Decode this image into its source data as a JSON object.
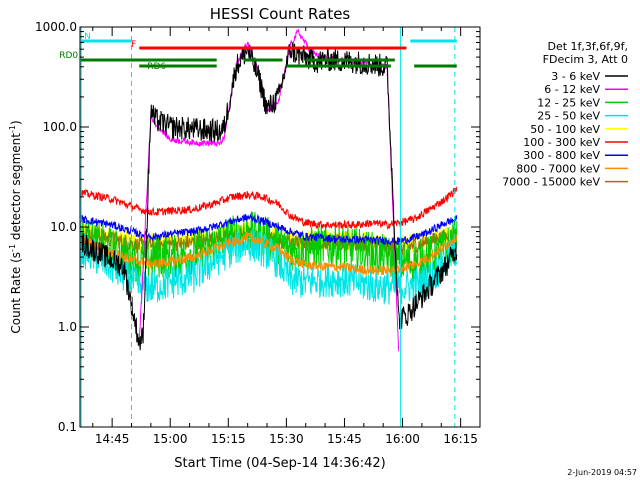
{
  "chart_data": {
    "type": "line",
    "title": "HESSI Count Rates",
    "xlabel": "Start Time (04-Sep-14 14:36:42)",
    "ylabel_main": "Count Rate (s",
    "ylabel_sup1": "-1",
    "ylabel_mid": " detector segment",
    "ylabel_sup2": "-1",
    "ylabel_end": ")",
    "y_scale": "log",
    "xlim": [
      "14:36:42",
      "16:15"
    ],
    "ylim": [
      0.1,
      1000
    ],
    "x_ticks": [
      "14:45",
      "15:00",
      "15:15",
      "15:30",
      "15:45",
      "16:00",
      "16:15"
    ],
    "x_tick_minutes": [
      45,
      60,
      75,
      90,
      105,
      120,
      135
    ],
    "y_ticks": [
      "0.1",
      "1.0",
      "10.0",
      "100.0",
      "1000.0"
    ],
    "y_tick_values": [
      0.1,
      1,
      10,
      100,
      1000
    ],
    "legend_header": [
      "Det 1f,3f,6f,9f,",
      "FDecim 3, Att 0"
    ],
    "legend_placement": "right",
    "series": [
      {
        "name": "3 - 6 keV",
        "color": "#000000",
        "x": [
          37,
          48,
          52,
          53,
          55,
          56,
          60,
          66,
          73,
          74,
          77,
          80,
          83,
          85,
          88,
          91,
          93,
          96,
          98,
          101,
          104,
          107,
          110,
          113,
          116,
          119,
          121,
          124,
          127,
          131,
          134
        ],
        "y": [
          7,
          4,
          0.7,
          0.8,
          150,
          120,
          100,
          95,
          90,
          100,
          400,
          600,
          300,
          150,
          200,
          600,
          520,
          480,
          450,
          470,
          460,
          450,
          440,
          420,
          400,
          1.2,
          1.3,
          1.8,
          2.5,
          4,
          6
        ]
      },
      {
        "name": "6 - 12 keV",
        "color": "#ff00ff",
        "x": [
          52,
          55,
          56,
          60,
          66,
          73,
          74,
          77,
          80,
          83,
          85,
          88,
          91,
          93,
          96,
          98,
          101,
          104,
          107,
          110,
          113,
          116,
          119
        ],
        "y": [
          0.7,
          130,
          110,
          75,
          70,
          68,
          80,
          420,
          700,
          350,
          140,
          180,
          650,
          900,
          600,
          520,
          480,
          470,
          460,
          440,
          420,
          400,
          0.6
        ]
      },
      {
        "name": "12 - 25 keV",
        "color": "#00cc00",
        "x": [
          37,
          45,
          52,
          56,
          60,
          66,
          71,
          76,
          80,
          84,
          88,
          91,
          95,
          100,
          104,
          108,
          112,
          116,
          119,
          123,
          127,
          131,
          134
        ],
        "y": [
          8,
          6,
          4.5,
          5,
          5,
          5.5,
          6.5,
          8,
          9,
          8,
          7,
          6,
          6,
          6.5,
          6.5,
          6,
          5.5,
          5,
          4.5,
          4.5,
          5,
          6,
          8
        ]
      },
      {
        "name": "25 - 50 keV",
        "color": "#00e5e5",
        "x": [
          37,
          45,
          52,
          56,
          60,
          66,
          71,
          76,
          80,
          84,
          88,
          91,
          95,
          100,
          104,
          108,
          112,
          116,
          119,
          123,
          127,
          131,
          134
        ],
        "y": [
          6,
          4,
          2.5,
          2.5,
          2.8,
          3.2,
          4.5,
          6,
          7,
          6,
          4.5,
          3,
          2.8,
          3,
          3,
          2.8,
          2.6,
          2.5,
          2.5,
          2.6,
          3,
          4.5,
          6
        ]
      },
      {
        "name": "50 - 100 keV",
        "color": "#ffff00",
        "x": [
          37,
          52,
          66,
          80,
          91,
          104,
          119,
          134
        ],
        "y": [
          9,
          7,
          7.5,
          9,
          7.5,
          7.5,
          6.5,
          9
        ]
      },
      {
        "name": "100 - 300 keV",
        "color": "#ff0000",
        "x": [
          37,
          45,
          52,
          56,
          60,
          66,
          71,
          76,
          80,
          84,
          88,
          91,
          95,
          100,
          104,
          108,
          112,
          116,
          119,
          123,
          127,
          131,
          134
        ],
        "y": [
          22,
          19,
          15,
          14,
          14.5,
          15,
          17,
          20,
          21,
          20,
          17,
          13,
          11,
          10.5,
          10.5,
          10.5,
          11,
          10.5,
          11,
          12,
          15,
          19,
          24
        ]
      },
      {
        "name": "300 - 800 keV",
        "color": "#0000ff",
        "x": [
          37,
          45,
          52,
          56,
          60,
          66,
          71,
          76,
          80,
          84,
          88,
          91,
          95,
          100,
          104,
          108,
          112,
          116,
          119,
          123,
          127,
          131,
          134
        ],
        "y": [
          12,
          10.5,
          8.5,
          8,
          8.5,
          9,
          10,
          11.5,
          12.5,
          11.5,
          10,
          9,
          8,
          7.8,
          7.5,
          7.5,
          7.4,
          7.3,
          7.2,
          7.8,
          9,
          11,
          12
        ]
      },
      {
        "name": "800 - 7000 keV",
        "color": "#ff8c00",
        "x": [
          37,
          45,
          52,
          56,
          60,
          66,
          71,
          76,
          80,
          84,
          88,
          91,
          95,
          100,
          104,
          108,
          112,
          116,
          119,
          123,
          127,
          131,
          134
        ],
        "y": [
          7.5,
          5.5,
          4.5,
          4.3,
          4.5,
          5,
          6,
          7,
          8,
          7,
          6,
          4.8,
          4.2,
          4,
          4,
          3.8,
          3.7,
          3.7,
          3.8,
          4.2,
          5,
          6.5,
          8
        ]
      },
      {
        "name": "7000 - 15000 keV",
        "color": "#a07000",
        "x": [
          37,
          52,
          66,
          80,
          91,
          104,
          119,
          134
        ],
        "y": [
          9,
          6.5,
          7,
          8.5,
          7,
          7,
          6,
          8.5
        ]
      }
    ],
    "state_bars": [
      {
        "label": "N",
        "color": "#00e5e5",
        "segments": [
          [
            37,
            50
          ],
          [
            122,
            134
          ]
        ]
      },
      {
        "label": "F",
        "color": "#ff0000",
        "segments": [
          [
            52,
            121
          ]
        ]
      },
      {
        "label": "RD0",
        "color": "#007a00",
        "segments": [
          [
            37,
            72
          ],
          [
            79,
            89
          ],
          [
            95,
            118
          ]
        ]
      },
      {
        "label": "RD6",
        "color": "#007a00",
        "segments": [
          [
            52,
            72
          ],
          [
            90,
            117
          ],
          [
            123,
            134
          ]
        ]
      }
    ],
    "vertical_lines": [
      {
        "x": 37,
        "style": "solid",
        "color": "#00e5e5"
      },
      {
        "x": 50,
        "style": "dashed",
        "color": "#00e5e5"
      },
      {
        "x": 119.5,
        "style": "solid",
        "color": "#00e5e5"
      },
      {
        "x": 133.5,
        "style": "dashed",
        "color": "#00e5e5"
      }
    ]
  },
  "footer": {
    "timestamp": "2-Jun-2019 04:57"
  }
}
